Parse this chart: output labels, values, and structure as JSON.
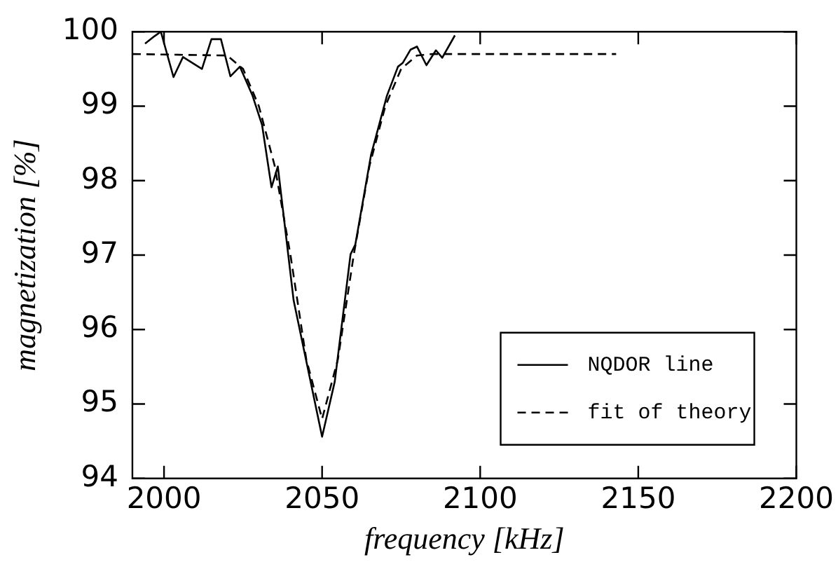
{
  "chart_data": {
    "type": "line",
    "xlabel": "frequency [kHz]",
    "ylabel": "magnetization [%]",
    "xlim": [
      1990,
      2200
    ],
    "xticks": [
      2000,
      2050,
      2100,
      2150,
      2200
    ],
    "ylim": [
      94,
      100
    ],
    "yticks": [
      94,
      95,
      96,
      97,
      98,
      99,
      100
    ],
    "grid": false,
    "legend": "bottom right",
    "marker": "none",
    "series": [
      {
        "name": "NQDOR line",
        "color": "#000000",
        "line_style": "solid",
        "x": [
          1994,
          1997,
          1999,
          2003,
          2006,
          2012,
          2015,
          2018,
          2021,
          2024,
          2028,
          2031,
          2034,
          2036,
          2041,
          2050,
          2054,
          2059,
          2060.5,
          2065.5,
          2070.5,
          2074,
          2075.5,
          2078,
          2080,
          2083,
          2086,
          2088,
          2092
        ],
        "values": [
          99.84,
          99.94,
          100.0,
          99.39,
          99.66,
          99.5,
          99.9,
          99.9,
          99.4,
          99.53,
          99.14,
          98.75,
          97.91,
          98.19,
          96.39,
          94.56,
          95.3,
          97.01,
          97.14,
          98.35,
          99.14,
          99.53,
          99.58,
          99.76,
          99.8,
          99.55,
          99.75,
          99.65,
          99.95
        ]
      },
      {
        "name": "fit of theory",
        "color": "#000000",
        "line_style": "dashed",
        "x": [
          1990,
          2020,
          2025,
          2030,
          2035,
          2040,
          2045,
          2050,
          2055,
          2060,
          2065,
          2070,
          2075,
          2080,
          2085,
          2143
        ],
        "values": [
          99.7,
          99.68,
          99.5,
          99.0,
          98.2,
          97.0,
          95.6,
          94.8,
          95.6,
          97.0,
          98.2,
          99.0,
          99.5,
          99.68,
          99.7,
          99.7
        ]
      }
    ]
  }
}
